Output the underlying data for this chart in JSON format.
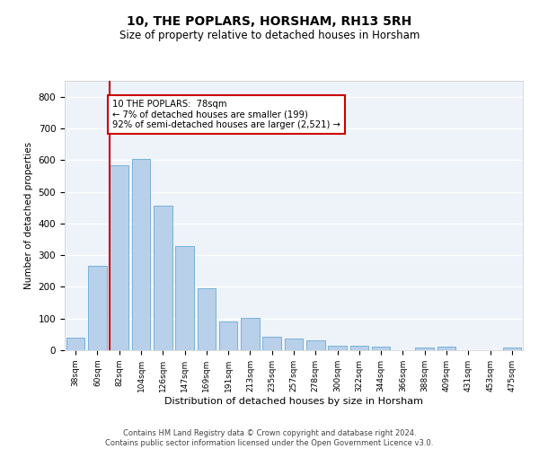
{
  "title": "10, THE POPLARS, HORSHAM, RH13 5RH",
  "subtitle": "Size of property relative to detached houses in Horsham",
  "xlabel": "Distribution of detached houses by size in Horsham",
  "ylabel": "Number of detached properties",
  "bar_color": "#b8d0ea",
  "bar_edge_color": "#6aaad4",
  "background_color": "#eef3fa",
  "grid_color": "#ffffff",
  "categories": [
    "38sqm",
    "60sqm",
    "82sqm",
    "104sqm",
    "126sqm",
    "147sqm",
    "169sqm",
    "191sqm",
    "213sqm",
    "235sqm",
    "257sqm",
    "278sqm",
    "300sqm",
    "322sqm",
    "344sqm",
    "366sqm",
    "388sqm",
    "409sqm",
    "431sqm",
    "453sqm",
    "475sqm"
  ],
  "values": [
    40,
    265,
    585,
    603,
    455,
    328,
    195,
    90,
    103,
    42,
    38,
    32,
    14,
    15,
    10,
    0,
    8,
    10,
    0,
    0,
    8
  ],
  "marker_bin_index": 2,
  "annotation_text": "10 THE POPLARS:  78sqm\n← 7% of detached houses are smaller (199)\n92% of semi-detached houses are larger (2,521) →",
  "annotation_box_color": "#ffffff",
  "annotation_box_edge_color": "#cc0000",
  "vline_color": "#cc0000",
  "ylim": [
    0,
    850
  ],
  "yticks": [
    0,
    100,
    200,
    300,
    400,
    500,
    600,
    700,
    800
  ],
  "footer_line1": "Contains HM Land Registry data © Crown copyright and database right 2024.",
  "footer_line2": "Contains public sector information licensed under the Open Government Licence v3.0."
}
